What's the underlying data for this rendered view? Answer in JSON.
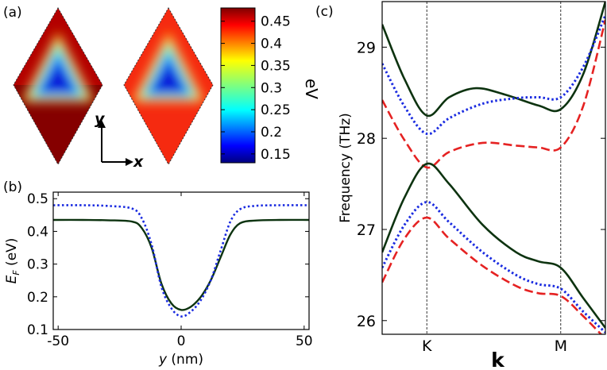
{
  "panel_labels": {
    "a": "(a)",
    "b": "(b)",
    "c": "(c)"
  },
  "colors": {
    "solid": "#0d3310",
    "dotted": "#1a2be0",
    "dashed": "#e52222"
  },
  "chart_data": [
    {
      "panel": "a",
      "type": "heatmap",
      "colorbar": {
        "unit_label": "eV",
        "ticks": [
          "0.45",
          "0.4",
          "0.35",
          "0.3",
          "0.25",
          "0.2",
          "0.15"
        ],
        "range": [
          0.13,
          0.48
        ],
        "colormap": "jet"
      },
      "axes": {
        "x": "x",
        "y": "y"
      }
    },
    {
      "panel": "b",
      "type": "line",
      "xlabel": "y (nm)",
      "ylabel": "E_F (eV)",
      "xlabel_parts": {
        "italic": "y",
        "rest": " (nm)"
      },
      "ylabel_parts": {
        "italic": "E",
        "sub": "F",
        "rest": " (eV)"
      },
      "xlim": [
        -52,
        52
      ],
      "ylim": [
        0.1,
        0.52
      ],
      "xticks": [
        "-50",
        "0",
        "50"
      ],
      "yticks": [
        "0.5",
        "0.4",
        "0.3",
        "0.2",
        "0.1"
      ],
      "xtick_values": [
        -50,
        0,
        50
      ],
      "ytick_values": [
        0.5,
        0.4,
        0.3,
        0.2,
        0.1
      ],
      "series": [
        {
          "style": "solid",
          "x": [
            -52,
            -40,
            -30,
            -20,
            -16,
            -12,
            -8,
            -4,
            0,
            4,
            8,
            12,
            16,
            20,
            24,
            30,
            40,
            52
          ],
          "y": [
            0.435,
            0.435,
            0.434,
            0.43,
            0.41,
            0.35,
            0.24,
            0.18,
            0.16,
            0.17,
            0.2,
            0.25,
            0.32,
            0.39,
            0.425,
            0.433,
            0.435,
            0.435
          ]
        },
        {
          "style": "dotted",
          "x": [
            -52,
            -40,
            -30,
            -20,
            -16,
            -12,
            -8,
            -4,
            0,
            4,
            8,
            12,
            16,
            20,
            24,
            30,
            40,
            52
          ],
          "y": [
            0.48,
            0.48,
            0.478,
            0.47,
            0.44,
            0.36,
            0.23,
            0.165,
            0.14,
            0.155,
            0.19,
            0.25,
            0.34,
            0.43,
            0.468,
            0.478,
            0.48,
            0.48
          ]
        }
      ]
    },
    {
      "panel": "c",
      "type": "line",
      "ylabel": "Frequency (THz)",
      "xlabel": "k",
      "ylim": [
        25.85,
        29.5
      ],
      "yticks": [
        "29",
        "28",
        "27",
        "26"
      ],
      "ytick_values": [
        29,
        28,
        27,
        26
      ],
      "xlim": [
        0,
        1
      ],
      "xticks": [
        "K",
        "M"
      ],
      "xtick_values": [
        0.2,
        0.8
      ],
      "series": [
        {
          "style": "solid",
          "x": [
            0,
            0.1,
            0.2,
            0.3,
            0.42,
            0.55,
            0.7,
            0.8,
            0.9,
            1
          ],
          "y": [
            29.25,
            28.65,
            28.25,
            28.45,
            28.55,
            28.48,
            28.36,
            28.32,
            28.7,
            29.5
          ]
        },
        {
          "style": "dotted",
          "x": [
            0,
            0.1,
            0.2,
            0.3,
            0.45,
            0.6,
            0.7,
            0.8,
            0.9,
            1
          ],
          "y": [
            28.82,
            28.35,
            28.05,
            28.22,
            28.38,
            28.44,
            28.45,
            28.45,
            28.78,
            29.35
          ]
        },
        {
          "style": "dashed",
          "x": [
            0,
            0.1,
            0.2,
            0.3,
            0.45,
            0.6,
            0.7,
            0.8,
            0.9,
            1
          ],
          "y": [
            28.42,
            27.98,
            27.68,
            27.85,
            27.95,
            27.92,
            27.9,
            27.9,
            28.35,
            29.3
          ]
        },
        {
          "style": "solid",
          "x": [
            0,
            0.1,
            0.2,
            0.3,
            0.45,
            0.6,
            0.7,
            0.8,
            0.9,
            1
          ],
          "y": [
            26.75,
            27.35,
            27.72,
            27.5,
            27.05,
            26.75,
            26.65,
            26.58,
            26.25,
            25.92
          ]
        },
        {
          "style": "dotted",
          "x": [
            0,
            0.1,
            0.2,
            0.3,
            0.45,
            0.6,
            0.7,
            0.8,
            0.9,
            1
          ],
          "y": [
            26.58,
            27.05,
            27.3,
            27.08,
            26.75,
            26.5,
            26.4,
            26.35,
            26.1,
            25.87
          ]
        },
        {
          "style": "dashed",
          "x": [
            0,
            0.1,
            0.2,
            0.3,
            0.45,
            0.6,
            0.7,
            0.8,
            0.9,
            1
          ],
          "y": [
            26.42,
            26.9,
            27.13,
            26.9,
            26.6,
            26.38,
            26.3,
            26.27,
            26.05,
            25.8
          ]
        }
      ]
    }
  ]
}
